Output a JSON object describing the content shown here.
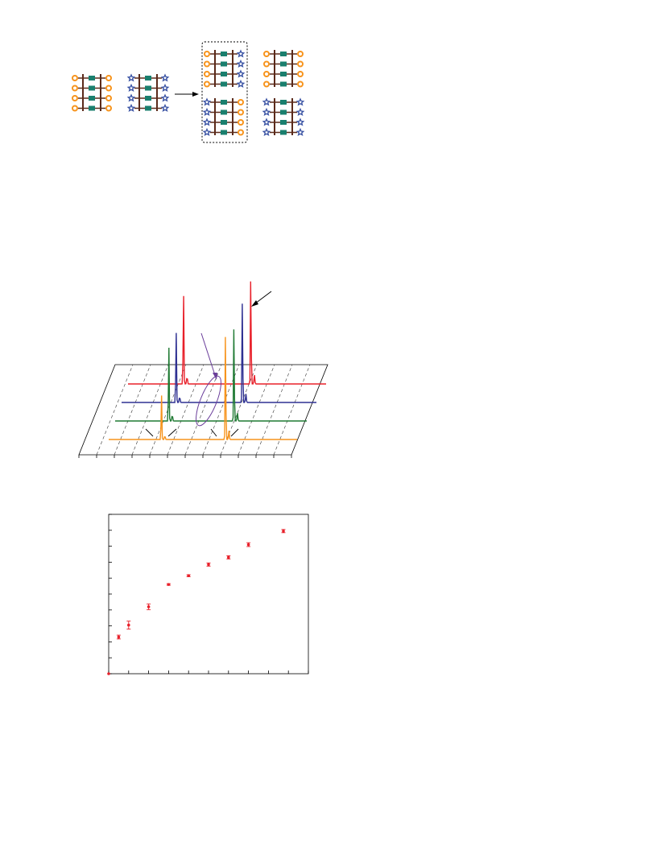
{
  "colors": {
    "red": "#e8202a",
    "blue": "#2e3092",
    "green": "#1f7a33",
    "orange": "#f7941d",
    "purple": "#6a3d9a",
    "rail": "#5b2a1a",
    "rung": "#1a7f6e",
    "circle": "#f7941d",
    "star": "#3a53a4",
    "marker": "#e8202a"
  },
  "schematic": {
    "icons": [
      "circle-end-icon",
      "star-end-icon",
      "reaction-arrow-icon",
      "dashed-box-icon"
    ],
    "ladders": [
      {
        "left": "circle",
        "right": "circle"
      },
      {
        "left": "star",
        "right": "star"
      },
      {
        "left": "circle",
        "right": "star",
        "boxed": true
      },
      {
        "left": "circle",
        "right": "circle"
      },
      {
        "left": "star",
        "right": "circle",
        "boxed": true
      },
      {
        "left": "star",
        "right": "star"
      }
    ]
  },
  "chart_data": [
    {
      "type": "line",
      "view": "3d-waterfall",
      "title": "",
      "xlabel": "",
      "ylabel": "",
      "grid": true,
      "series": [
        {
          "color": "red",
          "peaks": [
            {
              "x": 0.28,
              "h": 120
            },
            {
              "x": 0.62,
              "h": 140
            }
          ]
        },
        {
          "color": "blue",
          "peaks": [
            {
              "x": 0.28,
              "h": 95
            },
            {
              "x": 0.62,
              "h": 135
            }
          ]
        },
        {
          "color": "green",
          "peaks": [
            {
              "x": 0.28,
              "h": 100
            },
            {
              "x": 0.62,
              "h": 125
            }
          ]
        },
        {
          "color": "orange",
          "peaks": [
            {
              "x": 0.28,
              "h": 60
            },
            {
              "x": 0.62,
              "h": 140
            }
          ]
        }
      ],
      "annotations": [
        "arrow-top-right",
        "purple-arrow",
        "ellipse",
        "baseline-arrows"
      ]
    },
    {
      "type": "scatter",
      "title": "",
      "xlabel": "",
      "ylabel": "",
      "xlim": [
        0,
        10
      ],
      "ylim": [
        0,
        10
      ],
      "x": [
        0.5,
        1.0,
        2.0,
        3.0,
        4.0,
        5.0,
        6.0,
        7.0,
        8.75
      ],
      "y": [
        2.3,
        3.05,
        4.2,
        5.6,
        6.15,
        6.85,
        7.3,
        8.1,
        8.95
      ],
      "err": [
        0.12,
        0.25,
        0.18,
        0.05,
        0.06,
        0.1,
        0.1,
        0.12,
        0.1
      ]
    }
  ]
}
